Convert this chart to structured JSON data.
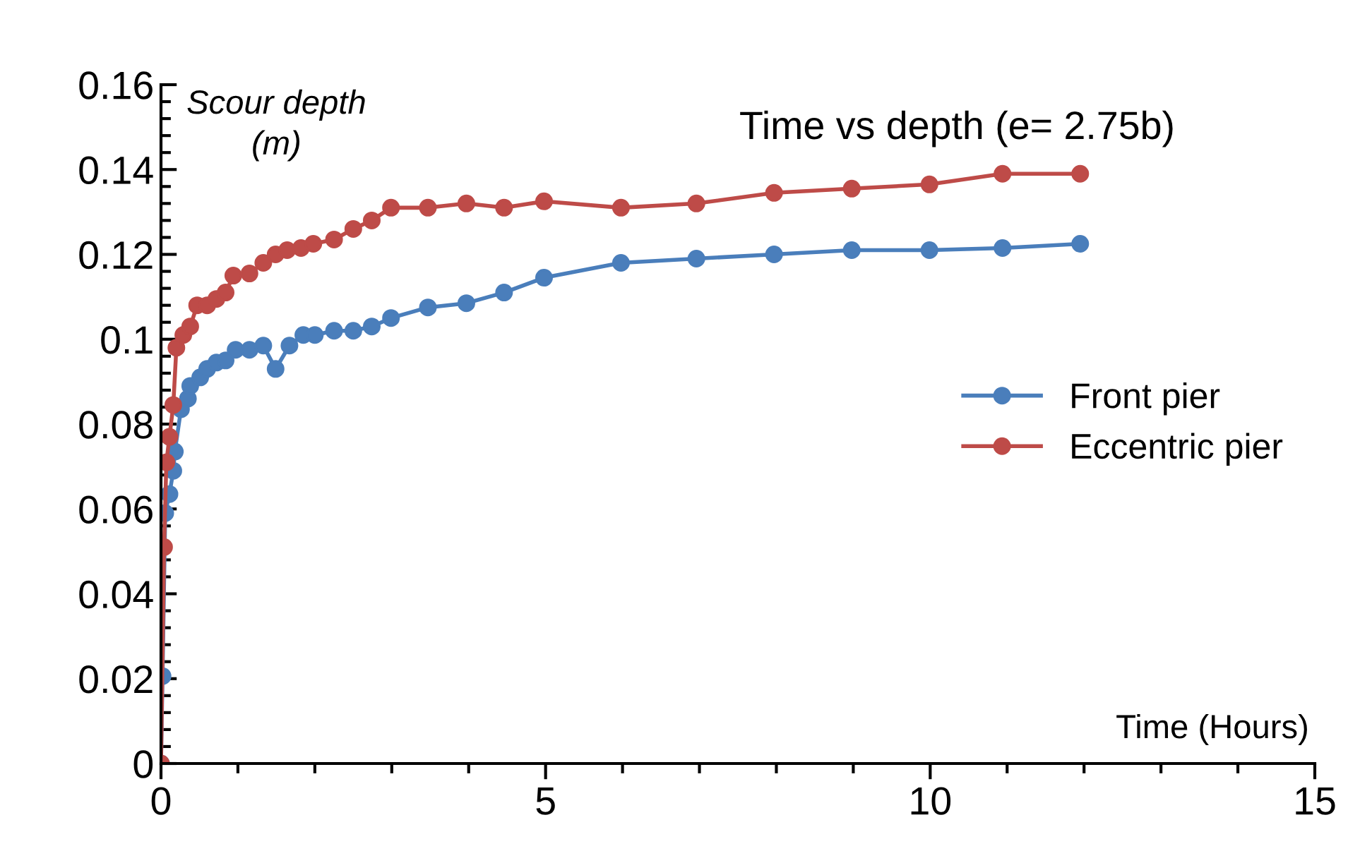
{
  "chart_data": {
    "type": "line",
    "title": "Time vs depth (e= 2.75b)",
    "xlabel": "Time (Hours)",
    "ylabel": "Scour depth\n(m)",
    "xlim": [
      0,
      15
    ],
    "xticks": [
      0,
      5,
      10,
      15
    ],
    "ylim": [
      0,
      0.16
    ],
    "yticks": [
      0,
      0.02,
      0.04,
      0.06,
      0.08,
      0.1,
      0.12,
      0.14,
      0.16
    ],
    "grid": false,
    "legend": "right",
    "marker": "circle",
    "line_style": "solid",
    "series": [
      {
        "name": "Front pier",
        "color": "#4a7ebb",
        "x": [
          0,
          0.02,
          0.055,
          0.11,
          0.16,
          0.18,
          0.26,
          0.35,
          0.38,
          0.51,
          0.6,
          0.72,
          0.84,
          0.97,
          1.15,
          1.33,
          1.49,
          1.67,
          1.85,
          2.0,
          2.25,
          2.5,
          2.74,
          2.99,
          3.47,
          3.97,
          4.46,
          4.98,
          5.98,
          6.96,
          7.97,
          8.98,
          9.99,
          10.94,
          11.95
        ],
        "values": [
          0,
          0.0206,
          0.059,
          0.0635,
          0.069,
          0.0735,
          0.0835,
          0.086,
          0.089,
          0.091,
          0.093,
          0.0945,
          0.095,
          0.0975,
          0.0975,
          0.0985,
          0.093,
          0.0985,
          0.101,
          0.101,
          0.102,
          0.102,
          0.103,
          0.105,
          0.1075,
          0.1085,
          0.111,
          0.1145,
          0.118,
          0.119,
          0.12,
          0.121,
          0.121,
          0.1215,
          0.1225
        ]
      },
      {
        "name": "Eccentric pier",
        "color": "#be4b48",
        "x": [
          0,
          0.04,
          0.07,
          0.11,
          0.16,
          0.2,
          0.29,
          0.38,
          0.47,
          0.6,
          0.72,
          0.84,
          0.94,
          1.15,
          1.33,
          1.49,
          1.64,
          1.82,
          1.98,
          2.25,
          2.5,
          2.74,
          2.99,
          3.47,
          3.97,
          4.46,
          4.98,
          5.98,
          6.96,
          7.97,
          8.98,
          9.99,
          10.94,
          11.95
        ],
        "values": [
          0,
          0.051,
          0.071,
          0.077,
          0.0845,
          0.098,
          0.101,
          0.103,
          0.108,
          0.108,
          0.1095,
          0.111,
          0.115,
          0.1155,
          0.118,
          0.12,
          0.121,
          0.1215,
          0.1225,
          0.1235,
          0.126,
          0.128,
          0.131,
          0.131,
          0.132,
          0.131,
          0.1325,
          0.131,
          0.132,
          0.1345,
          0.1355,
          0.1365,
          0.139,
          0.139
        ]
      }
    ]
  }
}
